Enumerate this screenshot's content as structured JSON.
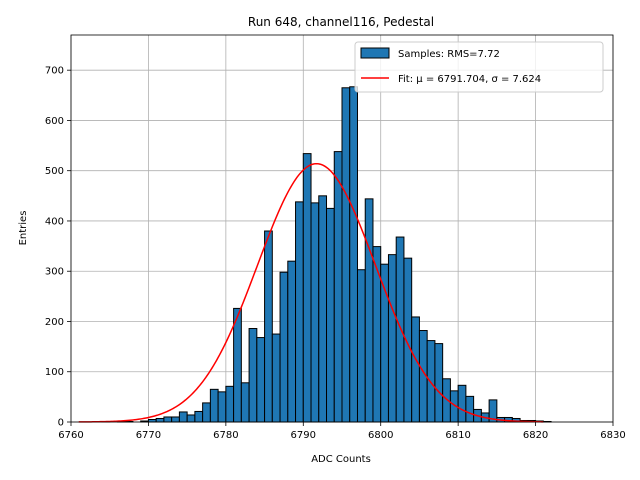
{
  "chart_data": {
    "type": "bar",
    "title": "Run 648, channel116, Pedestal",
    "xlabel": "ADC Counts",
    "ylabel": "Entries",
    "xlim": [
      6760,
      6830
    ],
    "ylim": [
      0,
      770
    ],
    "xticks": [
      6760,
      6770,
      6780,
      6790,
      6800,
      6810,
      6820,
      6830
    ],
    "yticks": [
      0,
      100,
      200,
      300,
      400,
      500,
      600,
      700
    ],
    "grid": true,
    "legend_position": "top-right",
    "bin_width": 1,
    "bin_start": 6761,
    "series": [
      {
        "name": "Samples: RMS=7.72",
        "kind": "histogram",
        "color": "#1f77b4",
        "edge_color": "#000000",
        "values": [
          0,
          0,
          0,
          1,
          0,
          1,
          1,
          0,
          2,
          5,
          7,
          10,
          10,
          20,
          14,
          21,
          38,
          65,
          60,
          71,
          226,
          78,
          186,
          168,
          380,
          175,
          298,
          320,
          438,
          534,
          436,
          450,
          425,
          538,
          665,
          667,
          303,
          444,
          349,
          314,
          333,
          368,
          326,
          209,
          182,
          162,
          156,
          86,
          62,
          73,
          51,
          25,
          18,
          44,
          9,
          9,
          7,
          3,
          3,
          2,
          1,
          0,
          0,
          0,
          0,
          0,
          0
        ]
      },
      {
        "name": "Fit: μ = 6791.704, σ = 7.624",
        "kind": "gaussian-fit",
        "color": "#ff0000",
        "mu": 6791.704,
        "sigma": 7.624,
        "amplitude": 514,
        "x_range": [
          6761,
          6821
        ]
      }
    ]
  }
}
